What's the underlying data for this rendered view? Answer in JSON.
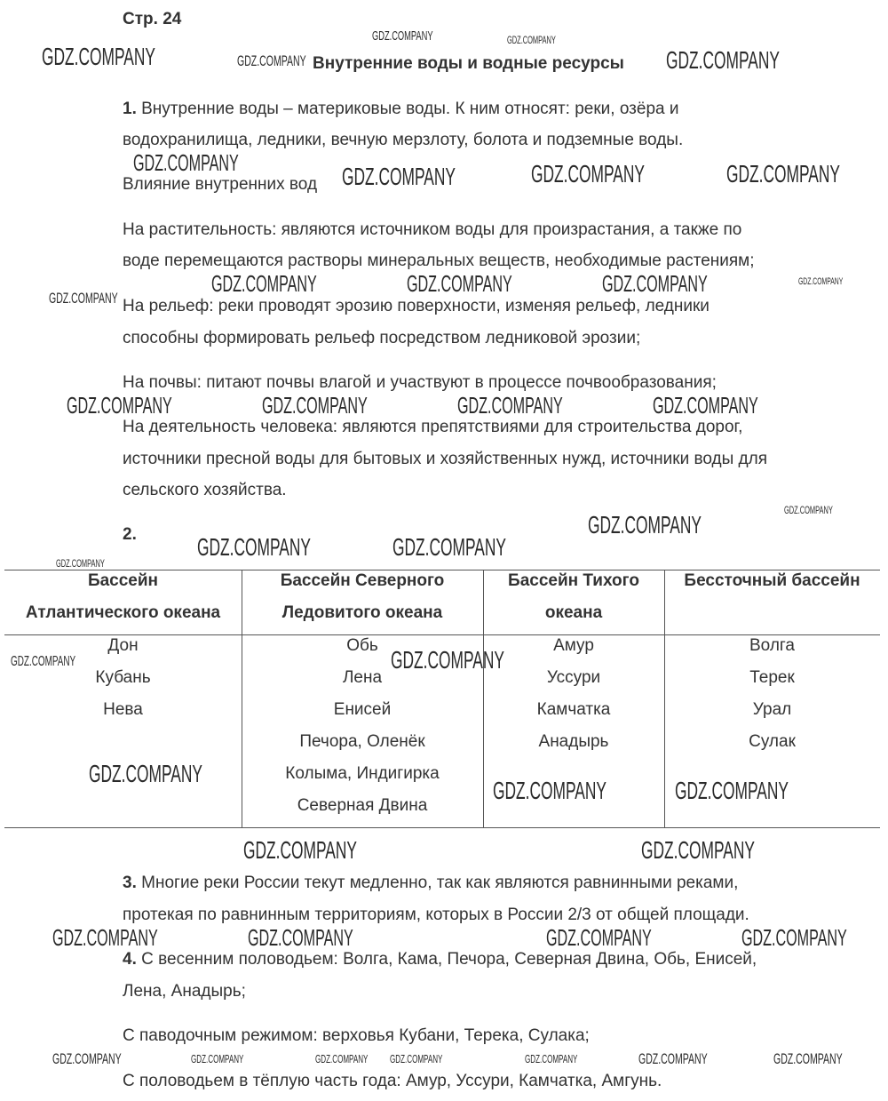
{
  "page_label": "Стр. 24",
  "title": "Внутренние воды и водные ресурсы",
  "q1": {
    "num": "1.",
    "line1": " Внутренние воды – материковые воды. К ним относят: реки, озёра и",
    "line2": "водохранилища, ледники, вечную мерзлоту, болота и подземные воды."
  },
  "influence": {
    "heading": "Влияние внутренних вод",
    "plants1": "На растительность: являются источником воды для произрастания, а также по",
    "plants2": "воде перемещаются растворы минеральных веществ, необходимые растениям;",
    "relief1": "На рельеф: реки проводят эрозию поверхности, изменяя рельеф, ледники",
    "relief2": "способны формировать рельеф посредством ледниковой эрозии;",
    "soil": "На почвы: питают почвы влагой и участвуют в процессе почвообразования;",
    "human1": "На деятельность человека: являются препятствиями для строительства дорог,",
    "human2": "источники пресной воды для бытовых и хозяйственных нужд, источники воды для",
    "human3": "сельского хозяйства."
  },
  "q2": {
    "num": "2."
  },
  "table": {
    "headers": [
      [
        "Бассейн",
        "Атлантического океана"
      ],
      [
        "Бассейн Северного",
        "Ледовитого океана"
      ],
      [
        "Бассейн Тихого",
        "океана"
      ],
      [
        "Бессточный бассейн",
        ""
      ]
    ],
    "columns": [
      [
        "Дон",
        "Кубань",
        "Нева"
      ],
      [
        "Обь",
        "Лена",
        "Енисей",
        "Печора, Оленёк",
        "Колыма, Индигирка",
        "Северная Двина"
      ],
      [
        "Амур",
        "Уссури",
        "Камчатка",
        "Анадырь"
      ],
      [
        "Волга",
        "Терек",
        "Урал",
        "Сулак"
      ]
    ]
  },
  "q3": {
    "num": "3.",
    "line1": " Многие реки России текут медленно, так как являются равнинными реками,",
    "line2": "протекая по равнинным территориям, которых в России 2/3 от общей площади."
  },
  "q4": {
    "num": "4.",
    "line1": " С весенним половодьем: Волга, Кама, Печора, Северная Двина, Обь, Енисей,",
    "line2": "Лена, Анадырь;",
    "line3": "С паводочным режимом: верховья Кубани, Терека, Сулака;",
    "line4": "С половодьем в тёплую часть года: Амур, Уссури, Камчатка, Амгунь."
  },
  "watermark": "GDZ.COMPANY"
}
